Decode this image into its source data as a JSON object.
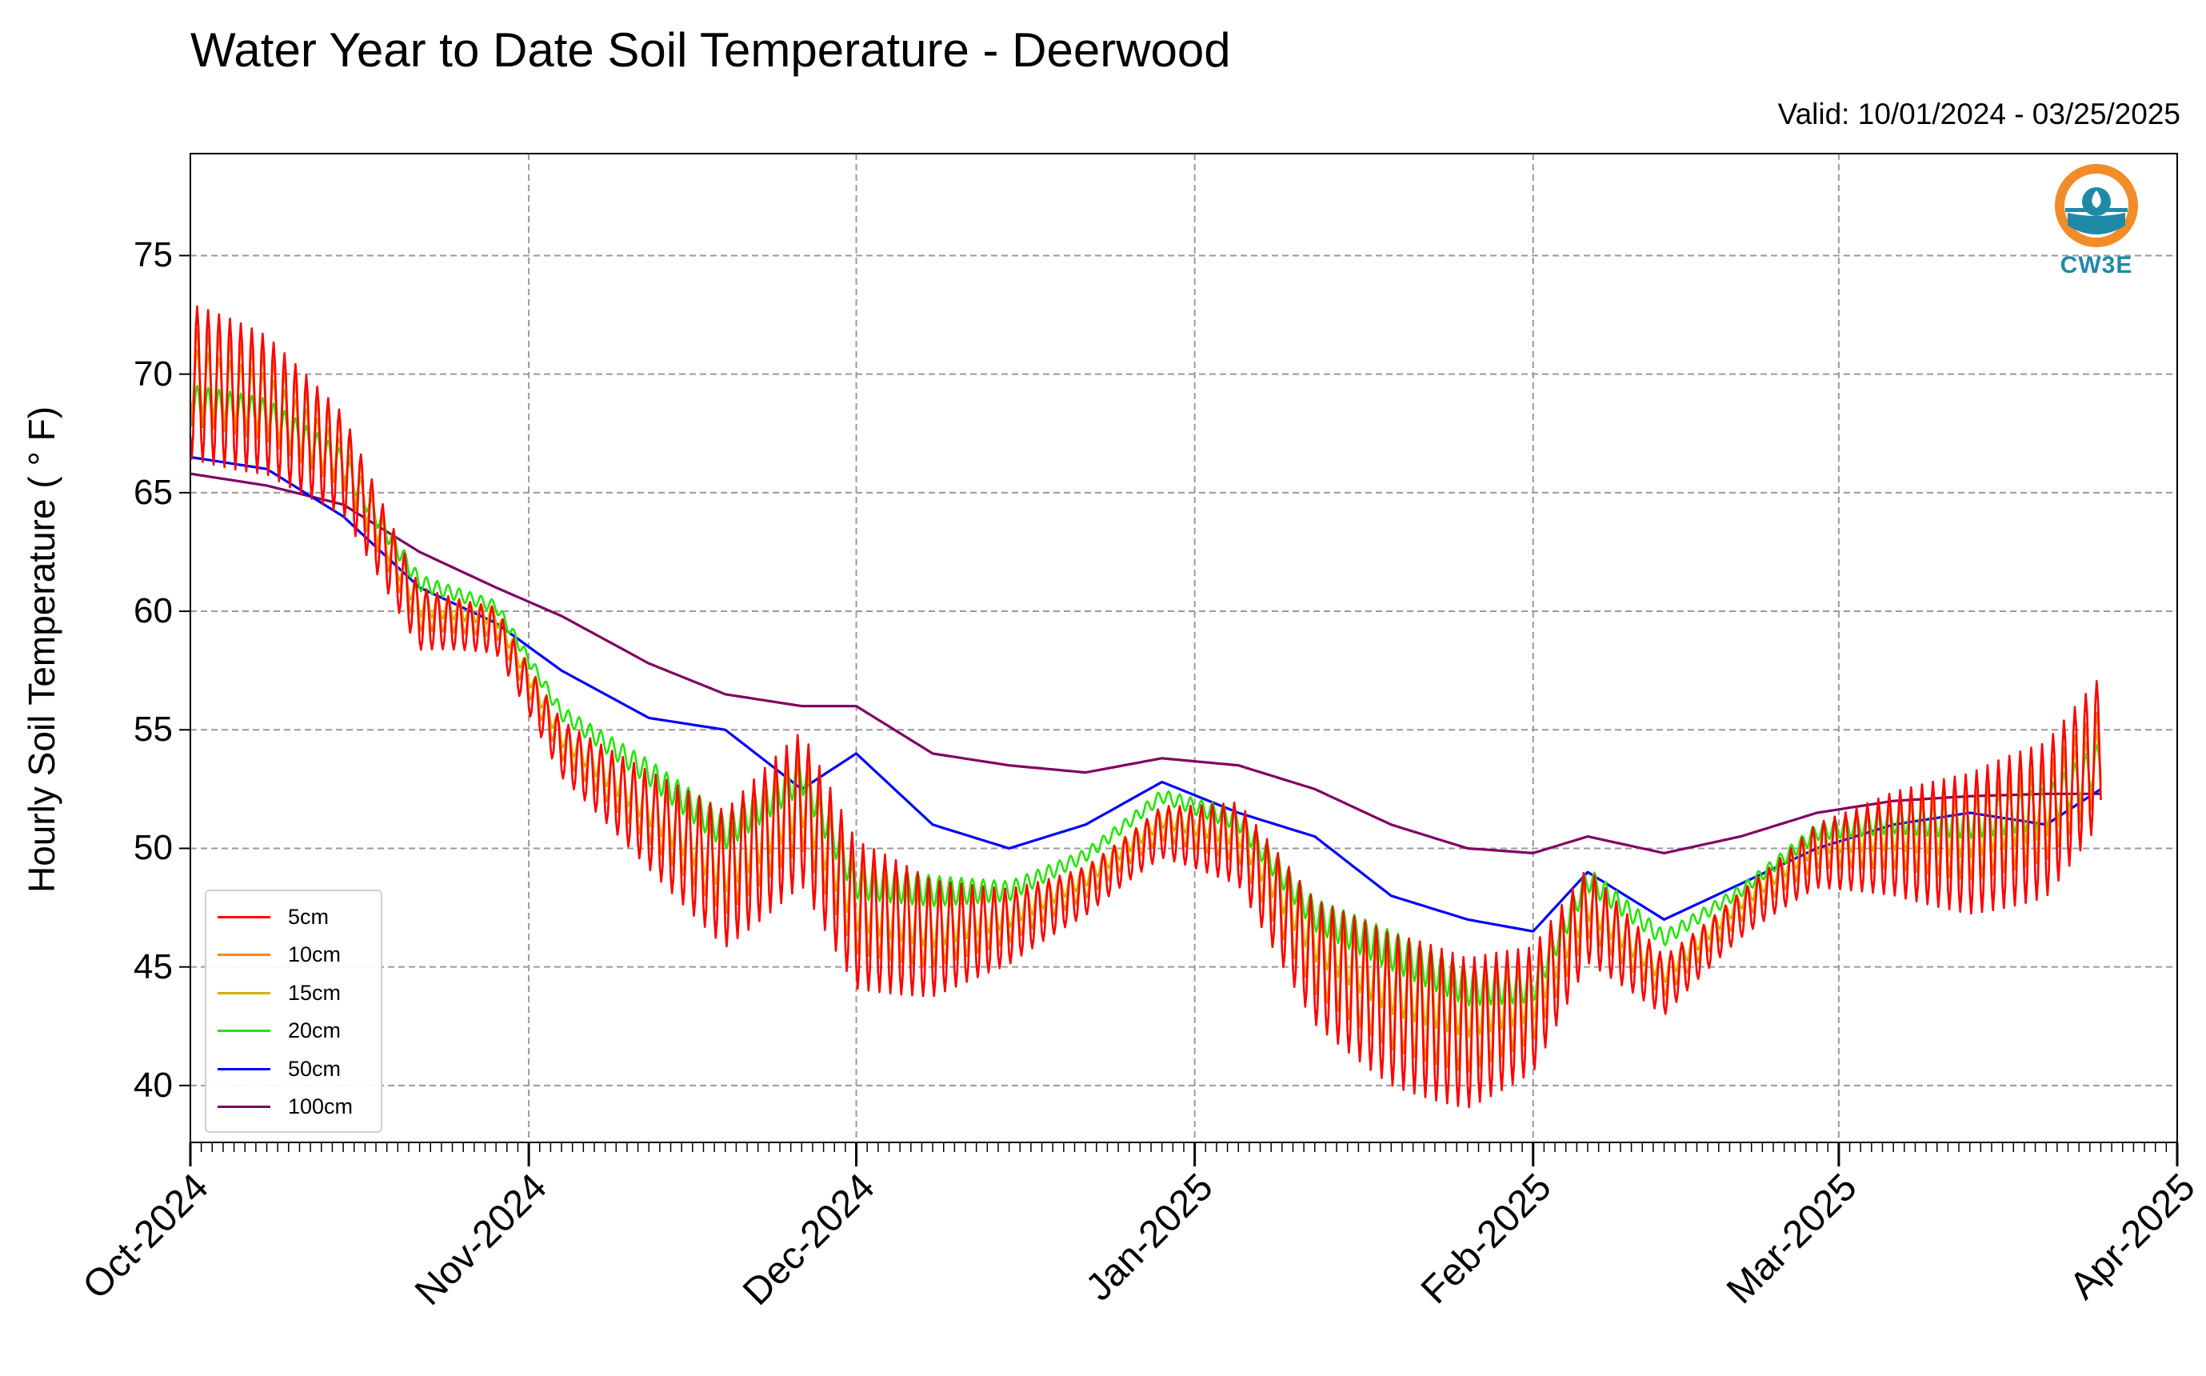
{
  "chart_data": {
    "type": "line",
    "title": "Water Year to Date Soil Temperature - Deerwood",
    "subtitle": "Valid: 10/01/2024 - 03/25/2025",
    "ylabel": "Hourly Soil Temperature ($^\\circ$F)",
    "ylabel_display": "Hourly Soil Temperature ( ° F)",
    "xlabel": "",
    "x_ticks": [
      "Oct-2024",
      "Nov-2024",
      "Dec-2024",
      "Jan-2025",
      "Feb-2025",
      "Mar-2025",
      "Apr-2025"
    ],
    "x_range": [
      "2024-10-01",
      "2025-04-01"
    ],
    "ylim": [
      37.6,
      79.3
    ],
    "y_ticks": [
      40,
      45,
      50,
      55,
      60,
      65,
      70,
      75
    ],
    "grid": true,
    "legend_position": "lower-left",
    "series": [
      {
        "name": "5cm",
        "color": "#ff0000",
        "amplitude": 6.5,
        "offset": -0.8,
        "x": [
          "2024-10-01",
          "2024-10-08",
          "2024-10-15",
          "2024-10-22",
          "2024-10-29",
          "2024-11-04",
          "2024-11-12",
          "2024-11-19",
          "2024-11-26",
          "2024-12-01",
          "2024-12-08",
          "2024-12-15",
          "2024-12-22",
          "2024-12-29",
          "2025-01-05",
          "2025-01-12",
          "2025-01-19",
          "2025-01-26",
          "2025-02-01",
          "2025-02-06",
          "2025-02-13",
          "2025-02-20",
          "2025-02-27",
          "2025-03-06",
          "2025-03-13",
          "2025-03-20",
          "2025-03-25"
        ],
        "y": [
          70.5,
          69.5,
          67.0,
          60.5,
          60.0,
          55.0,
          52.0,
          49.5,
          52.5,
          48.0,
          47.0,
          47.5,
          49.0,
          51.5,
          51.0,
          46.0,
          44.0,
          43.0,
          44.0,
          48.0,
          45.0,
          48.0,
          50.5,
          51.0,
          51.0,
          52.0,
          55.0
        ]
      },
      {
        "name": "10cm",
        "color": "#ff8c00",
        "amplitude": 4.0,
        "offset": -0.5,
        "x": [
          "2024-10-01",
          "2024-10-08",
          "2024-10-15",
          "2024-10-22",
          "2024-10-29",
          "2024-11-04",
          "2024-11-12",
          "2024-11-19",
          "2024-11-26",
          "2024-12-01",
          "2024-12-08",
          "2024-12-15",
          "2024-12-22",
          "2024-12-29",
          "2025-01-05",
          "2025-01-12",
          "2025-01-19",
          "2025-01-26",
          "2025-02-01",
          "2025-02-06",
          "2025-02-13",
          "2025-02-20",
          "2025-02-27",
          "2025-03-06",
          "2025-03-13",
          "2025-03-20",
          "2025-03-25"
        ],
        "y": [
          70.5,
          69.5,
          67.0,
          60.5,
          60.0,
          55.0,
          52.0,
          49.5,
          52.5,
          48.0,
          47.0,
          47.5,
          49.0,
          51.5,
          51.0,
          46.0,
          44.0,
          43.0,
          44.0,
          48.0,
          45.0,
          48.0,
          50.5,
          51.0,
          51.0,
          52.0,
          54.5
        ]
      },
      {
        "name": "15cm",
        "color": "#c8b400",
        "amplitude": 2.6,
        "offset": -0.2,
        "x": [
          "2024-10-01",
          "2024-10-08",
          "2024-10-15",
          "2024-10-22",
          "2024-10-29",
          "2024-11-04",
          "2024-11-12",
          "2024-11-19",
          "2024-11-26",
          "2024-12-01",
          "2024-12-08",
          "2024-12-15",
          "2024-12-22",
          "2024-12-29",
          "2025-01-05",
          "2025-01-12",
          "2025-01-19",
          "2025-01-26",
          "2025-02-01",
          "2025-02-06",
          "2025-02-13",
          "2025-02-20",
          "2025-02-27",
          "2025-03-06",
          "2025-03-13",
          "2025-03-20",
          "2025-03-25"
        ],
        "y": [
          70.0,
          69.0,
          66.5,
          60.5,
          60.0,
          55.0,
          52.0,
          49.5,
          52.5,
          48.0,
          47.0,
          47.5,
          49.0,
          51.5,
          51.0,
          46.5,
          44.5,
          43.5,
          44.0,
          48.0,
          45.0,
          48.0,
          50.5,
          51.0,
          51.0,
          52.0,
          54.0
        ]
      },
      {
        "name": "20cm",
        "color": "#22e600",
        "amplitude": 1.7,
        "offset": 0.2,
        "x": [
          "2024-10-01",
          "2024-10-08",
          "2024-10-15",
          "2024-10-22",
          "2024-10-29",
          "2024-11-04",
          "2024-11-12",
          "2024-11-19",
          "2024-11-26",
          "2024-12-01",
          "2024-12-08",
          "2024-12-15",
          "2024-12-22",
          "2024-12-29",
          "2025-01-05",
          "2025-01-12",
          "2025-01-19",
          "2025-01-26",
          "2025-02-01",
          "2025-02-06",
          "2025-02-13",
          "2025-02-20",
          "2025-02-27",
          "2025-03-06",
          "2025-03-13",
          "2025-03-20",
          "2025-03-25"
        ],
        "y": [
          68.5,
          68.0,
          66.0,
          61.0,
          60.0,
          55.5,
          53.0,
          50.5,
          53.0,
          48.5,
          48.0,
          48.0,
          49.5,
          52.0,
          51.0,
          47.0,
          45.5,
          44.0,
          44.0,
          48.5,
          46.0,
          48.0,
          50.5,
          51.0,
          51.0,
          51.5,
          53.5
        ]
      },
      {
        "name": "50cm",
        "color": "#0000ff",
        "amplitude": 0,
        "offset": 0,
        "x": [
          "2024-10-01",
          "2024-10-08",
          "2024-10-15",
          "2024-10-22",
          "2024-10-29",
          "2024-11-04",
          "2024-11-12",
          "2024-11-19",
          "2024-11-26",
          "2024-12-01",
          "2024-12-08",
          "2024-12-15",
          "2024-12-22",
          "2024-12-29",
          "2025-01-05",
          "2025-01-12",
          "2025-01-19",
          "2025-01-26",
          "2025-02-01",
          "2025-02-06",
          "2025-02-13",
          "2025-02-20",
          "2025-02-27",
          "2025-03-06",
          "2025-03-13",
          "2025-03-20",
          "2025-03-25"
        ],
        "y": [
          66.5,
          66.0,
          64.0,
          61.0,
          59.5,
          57.5,
          55.5,
          55.0,
          52.5,
          54.0,
          51.0,
          50.0,
          51.0,
          52.8,
          51.5,
          50.5,
          48.0,
          47.0,
          46.5,
          49.0,
          47.0,
          48.5,
          50.0,
          51.0,
          51.5,
          51.0,
          52.5
        ]
      },
      {
        "name": "100cm",
        "color": "#800060",
        "amplitude": 0,
        "offset": 0,
        "x": [
          "2024-10-01",
          "2024-10-08",
          "2024-10-15",
          "2024-10-22",
          "2024-10-29",
          "2024-11-04",
          "2024-11-12",
          "2024-11-19",
          "2024-11-26",
          "2024-12-01",
          "2024-12-08",
          "2024-12-15",
          "2024-12-22",
          "2024-12-29",
          "2025-01-05",
          "2025-01-12",
          "2025-01-19",
          "2025-01-26",
          "2025-02-01",
          "2025-02-06",
          "2025-02-13",
          "2025-02-20",
          "2025-02-27",
          "2025-03-06",
          "2025-03-13",
          "2025-03-20",
          "2025-03-25"
        ],
        "y": [
          65.8,
          65.3,
          64.5,
          62.5,
          61.0,
          59.8,
          57.8,
          56.5,
          56.0,
          56.0,
          54.0,
          53.5,
          53.2,
          53.8,
          53.5,
          52.5,
          51.0,
          50.0,
          49.8,
          50.5,
          49.8,
          50.5,
          51.5,
          52.0,
          52.2,
          52.3,
          52.3
        ]
      }
    ]
  },
  "logo": {
    "text": "CW3E",
    "colors": {
      "orange": "#f28c28",
      "blue": "#1f8aa8"
    }
  }
}
